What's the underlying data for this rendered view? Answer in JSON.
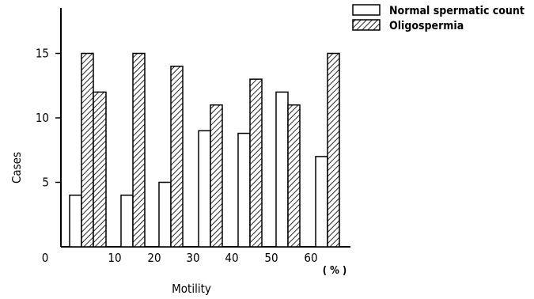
{
  "chart_data": {
    "type": "bar",
    "xlabel": "Motility",
    "ylabel": "Cases",
    "x_unit": "( % )",
    "origin_label": "0",
    "x_ticks": [
      "10",
      "20",
      "30",
      "40",
      "50",
      "60"
    ],
    "y_ticks": [
      "5",
      "10",
      "15"
    ],
    "ylim": [
      0,
      18
    ],
    "categories": [
      "0-10",
      "10-20",
      "20-30",
      "30-40",
      "40-50",
      "50-60",
      "60-70"
    ],
    "series": [
      {
        "name": "Normal spermatic count",
        "pattern": "plain",
        "values": [
          4,
          4,
          5,
          9,
          8.8,
          12,
          7
        ]
      },
      {
        "name": "Oligospermia",
        "pattern": "hatched",
        "values": [
          15,
          15,
          14,
          11,
          13,
          11,
          15
        ]
      }
    ],
    "extra_bars": [
      {
        "series": "Oligospermia",
        "category": "0-10",
        "value": 12
      }
    ],
    "legend_position": "top-right",
    "grid": false
  }
}
